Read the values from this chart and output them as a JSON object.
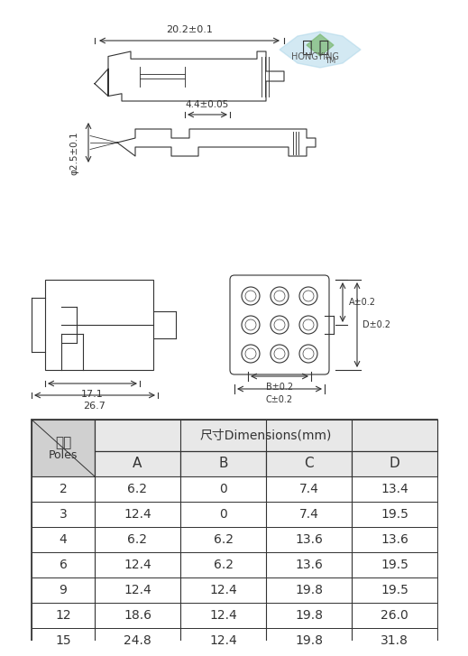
{
  "bg_color": "#ffffff",
  "title_cn": "鸿 赢",
  "title_en": "HONGYING",
  "tm": "TM",
  "dim1_label": "20.2±0.1",
  "dim2_label": "4.4±0.05",
  "dim3_label": "φ2.5±0.1",
  "dim_17": "17.1",
  "dim_267": "26.7",
  "dim_B02": "B±0.2",
  "dim_C02": "C±0.2",
  "dim_A02": "A±0.2",
  "dim_D02": "D±0.2",
  "table_header_row1": [
    "线数",
    "尺寸Dimensions(mm)"
  ],
  "table_header_row2": [
    "Poles",
    "A",
    "B",
    "C",
    "D"
  ],
  "table_data": [
    [
      "2",
      "6.2",
      "0",
      "7.4",
      "13.4"
    ],
    [
      "3",
      "12.4",
      "0",
      "7.4",
      "19.5"
    ],
    [
      "4",
      "6.2",
      "6.2",
      "13.6",
      "13.6"
    ],
    [
      "6",
      "12.4",
      "6.2",
      "13.6",
      "19.5"
    ],
    [
      "9",
      "12.4",
      "12.4",
      "19.8",
      "19.5"
    ],
    [
      "12",
      "18.6",
      "12.4",
      "19.8",
      "26.0"
    ],
    [
      "15",
      "24.8",
      "12.4",
      "19.8",
      "31.8"
    ]
  ],
  "line_color": "#333333",
  "header_bg": "#d0d0d0",
  "header_bg2": "#e8e8e8",
  "logo_color": "#6ab0d0",
  "logo_green": "#7ab870"
}
